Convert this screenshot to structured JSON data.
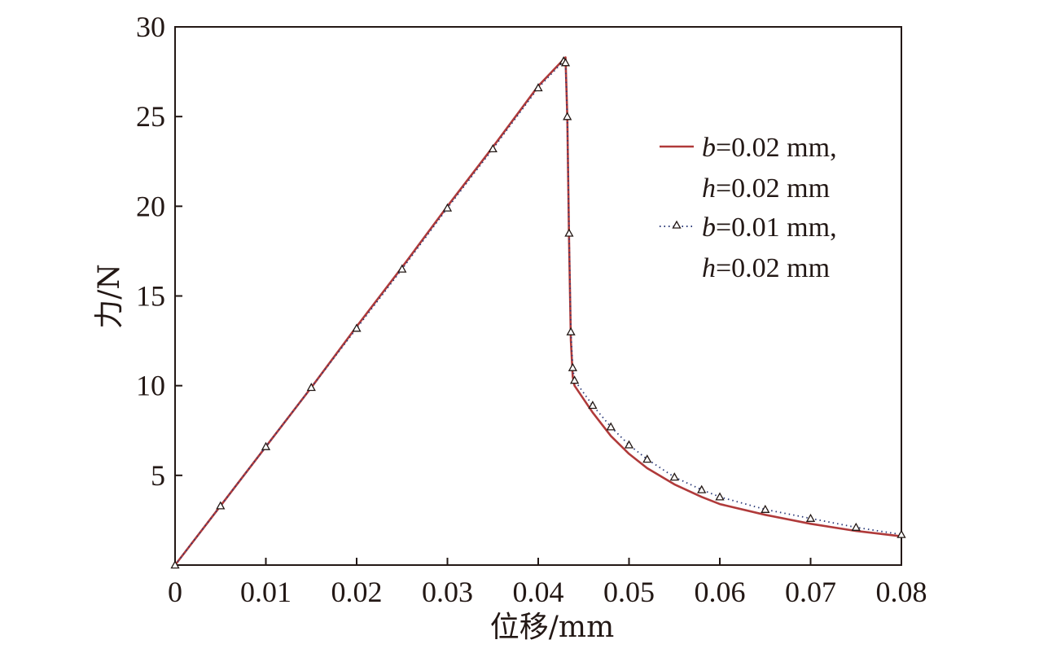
{
  "chart_data": {
    "type": "line",
    "title": "",
    "xlabel": "位移/mm",
    "ylabel": "力/N",
    "xlim": [
      0,
      0.08
    ],
    "ylim": [
      0,
      30
    ],
    "xticks": [
      0,
      0.01,
      0.02,
      0.03,
      0.04,
      0.05,
      0.06,
      0.07,
      0.08
    ],
    "xtick_labels": [
      "0",
      "0.01",
      "0.02",
      "0.03",
      "0.04",
      "0.05",
      "0.06",
      "0.07",
      "0.08"
    ],
    "yticks": [
      5,
      10,
      15,
      20,
      25,
      30
    ],
    "ytick_labels": [
      "5",
      "10",
      "15",
      "20",
      "25",
      "30"
    ],
    "grid": false,
    "legend_position": "right",
    "series": [
      {
        "name_italic": "b",
        "name_rest": "=0.02 mm,",
        "name_italic2": "h",
        "name_rest2": "=0.02 mm",
        "style": "solid",
        "color": "#b03a3a",
        "x": [
          0,
          0.005,
          0.01,
          0.015,
          0.02,
          0.025,
          0.03,
          0.035,
          0.04,
          0.043,
          0.0432,
          0.0434,
          0.0436,
          0.0438,
          0.044,
          0.046,
          0.048,
          0.05,
          0.052,
          0.055,
          0.058,
          0.06,
          0.065,
          0.07,
          0.075,
          0.08
        ],
        "y": [
          0,
          3.3,
          6.6,
          9.9,
          13.3,
          16.6,
          20.0,
          23.3,
          26.7,
          28.3,
          25.0,
          18.0,
          12.5,
          10.5,
          10.0,
          8.5,
          7.2,
          6.2,
          5.4,
          4.5,
          3.8,
          3.4,
          2.8,
          2.3,
          1.9,
          1.6
        ]
      },
      {
        "name_italic": "b",
        "name_rest": "=0.01 mm,",
        "name_italic2": "h",
        "name_rest2": "=0.02 mm",
        "style": "dotted-triangle",
        "color": "#2b3a78",
        "x": [
          0,
          0.005,
          0.01,
          0.015,
          0.02,
          0.025,
          0.03,
          0.035,
          0.04,
          0.0428,
          0.043,
          0.0432,
          0.0434,
          0.0436,
          0.0438,
          0.044,
          0.046,
          0.048,
          0.05,
          0.052,
          0.055,
          0.058,
          0.06,
          0.065,
          0.07,
          0.075,
          0.08
        ],
        "y": [
          0,
          3.3,
          6.6,
          9.9,
          13.2,
          16.5,
          19.9,
          23.2,
          26.6,
          28.1,
          28.0,
          25.0,
          18.5,
          13.0,
          11.0,
          10.3,
          8.9,
          7.7,
          6.7,
          5.9,
          4.9,
          4.2,
          3.8,
          3.1,
          2.6,
          2.1,
          1.7
        ]
      }
    ]
  }
}
